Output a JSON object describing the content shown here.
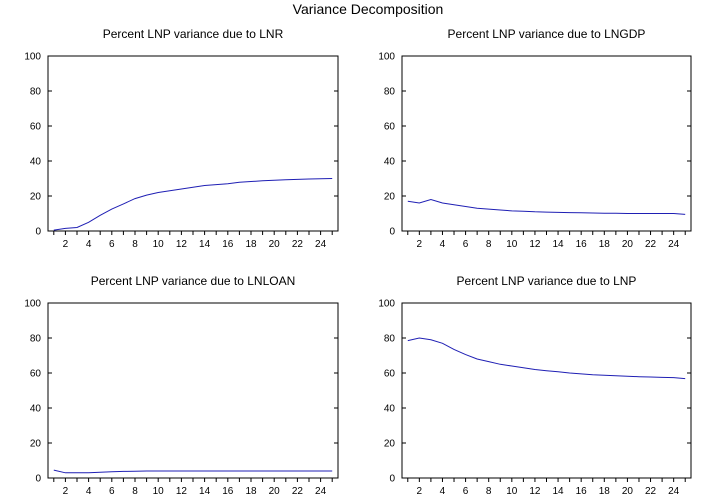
{
  "page_title": "Variance Decomposition",
  "chart_data": [
    {
      "type": "line",
      "title": "Percent LNP variance due to LNR",
      "ylim": [
        0,
        100
      ],
      "yticks": [
        0,
        20,
        40,
        60,
        80,
        100
      ],
      "xlim": [
        0.5,
        25.5
      ],
      "xticks": [
        2,
        4,
        6,
        8,
        10,
        12,
        14,
        16,
        18,
        20,
        22,
        24
      ],
      "line_color": "#1f1fb4",
      "x": [
        1,
        2,
        3,
        4,
        5,
        6,
        7,
        8,
        9,
        10,
        11,
        12,
        13,
        14,
        15,
        16,
        17,
        18,
        19,
        20,
        21,
        22,
        23,
        24,
        25
      ],
      "values": [
        0.5,
        1.5,
        2,
        5,
        9,
        12.5,
        15.5,
        18.5,
        20.5,
        22,
        23,
        24,
        25,
        26,
        26.5,
        27,
        27.8,
        28.3,
        28.7,
        29,
        29.3,
        29.5,
        29.7,
        29.9,
        30
      ]
    },
    {
      "type": "line",
      "title": "Percent LNP variance due to LNGDP",
      "ylim": [
        0,
        100
      ],
      "yticks": [
        0,
        20,
        40,
        60,
        80,
        100
      ],
      "xlim": [
        0.5,
        25.5
      ],
      "xticks": [
        2,
        4,
        6,
        8,
        10,
        12,
        14,
        16,
        18,
        20,
        22,
        24
      ],
      "line_color": "#1f1fb4",
      "x": [
        1,
        2,
        3,
        4,
        5,
        6,
        7,
        8,
        9,
        10,
        11,
        12,
        13,
        14,
        15,
        16,
        17,
        18,
        19,
        20,
        21,
        22,
        23,
        24,
        25
      ],
      "values": [
        17,
        16,
        18,
        16,
        15,
        14,
        13,
        12.5,
        12,
        11.5,
        11.3,
        11,
        10.8,
        10.6,
        10.5,
        10.4,
        10.3,
        10.2,
        10.1,
        10,
        10,
        10,
        10,
        10,
        9.5
      ]
    },
    {
      "type": "line",
      "title": "Percent LNP variance due to LNLOAN",
      "ylim": [
        0,
        100
      ],
      "yticks": [
        0,
        20,
        40,
        60,
        80,
        100
      ],
      "xlim": [
        0.5,
        25.5
      ],
      "xticks": [
        2,
        4,
        6,
        8,
        10,
        12,
        14,
        16,
        18,
        20,
        22,
        24
      ],
      "line_color": "#1f1fb4",
      "x": [
        1,
        2,
        3,
        4,
        5,
        6,
        7,
        8,
        9,
        10,
        11,
        12,
        13,
        14,
        15,
        16,
        17,
        18,
        19,
        20,
        21,
        22,
        23,
        24,
        25
      ],
      "values": [
        4.5,
        3,
        3,
        3,
        3.3,
        3.6,
        3.8,
        3.9,
        4,
        4,
        4,
        4,
        4,
        4,
        4,
        4,
        4,
        4,
        4,
        4,
        4,
        4,
        4,
        4,
        4
      ]
    },
    {
      "type": "line",
      "title": "Percent LNP variance due to LNP",
      "ylim": [
        0,
        100
      ],
      "yticks": [
        0,
        20,
        40,
        60,
        80,
        100
      ],
      "xlim": [
        0.5,
        25.5
      ],
      "xticks": [
        2,
        4,
        6,
        8,
        10,
        12,
        14,
        16,
        18,
        20,
        22,
        24
      ],
      "line_color": "#1f1fb4",
      "x": [
        1,
        2,
        3,
        4,
        5,
        6,
        7,
        8,
        9,
        10,
        11,
        12,
        13,
        14,
        15,
        16,
        17,
        18,
        19,
        20,
        21,
        22,
        23,
        24,
        25
      ],
      "values": [
        78.5,
        80,
        79,
        77,
        73.5,
        70.5,
        68,
        66.5,
        65,
        64,
        63,
        62,
        61.3,
        60.7,
        60,
        59.5,
        59,
        58.7,
        58.4,
        58.1,
        57.9,
        57.7,
        57.5,
        57.4,
        56.8
      ]
    }
  ]
}
